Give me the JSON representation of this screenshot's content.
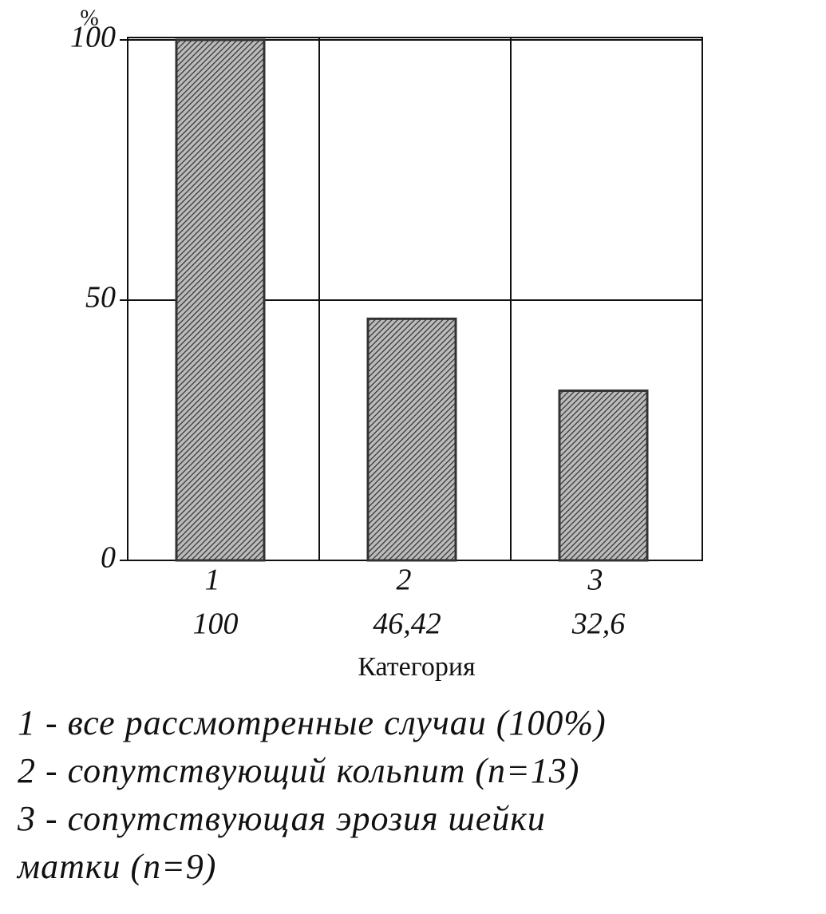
{
  "chart_data": {
    "type": "bar",
    "y_label": "%",
    "x_label": "Категория",
    "categories": [
      "1",
      "2",
      "3"
    ],
    "values": [
      100,
      46.42,
      32.6
    ],
    "value_labels": [
      "100",
      "46,42",
      "32,6"
    ],
    "color": "#333333",
    "ylim": [
      0,
      100
    ],
    "yticks": [
      0,
      50,
      100
    ],
    "grid": true,
    "notes": [
      "1 - все рассмотренные случаи (100%)",
      "2 - сопутствующий кольпит (n=13)",
      "3 - сопутствующая эрозия шейки",
      "матки (n=9)"
    ]
  }
}
